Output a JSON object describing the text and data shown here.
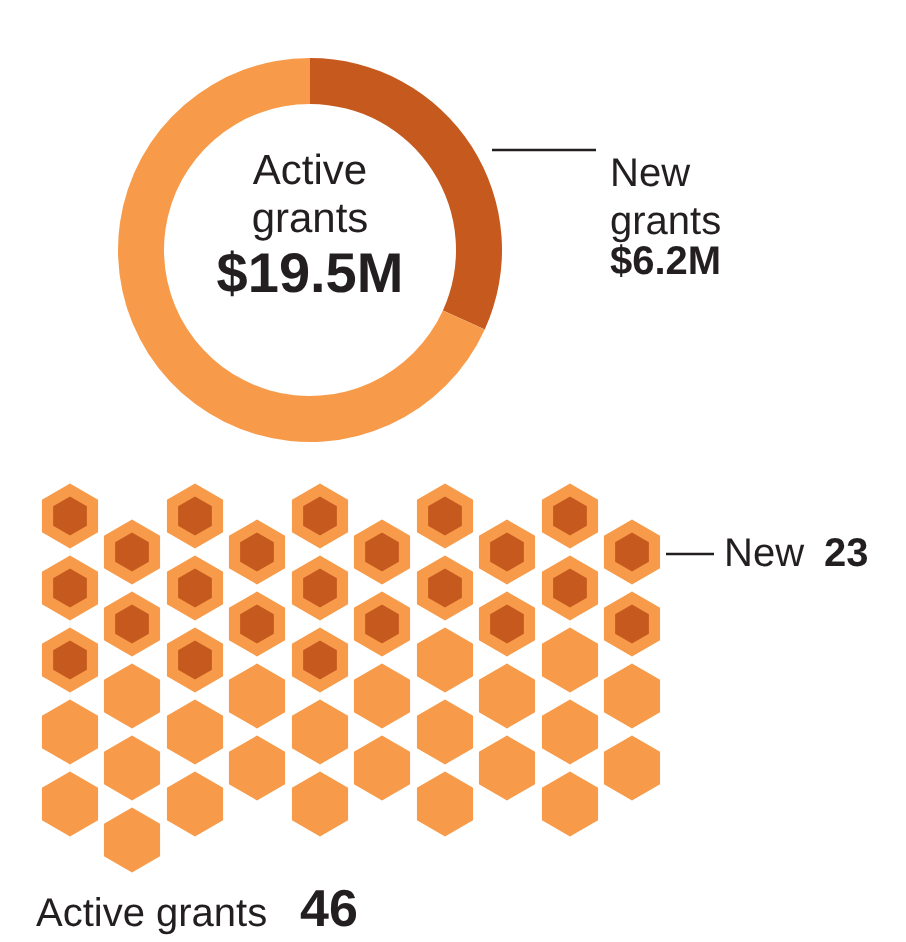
{
  "chart_data": [
    {
      "type": "donut",
      "categories": [
        "New grants",
        null
      ],
      "values": [
        6.2,
        13.3
      ],
      "colors": [
        "#c65a1e",
        "#f79b4a"
      ],
      "value_labels": [
        "$6.2M",
        null
      ],
      "annotations": [
        "Active grants",
        "$19.5M"
      ]
    },
    {
      "type": "other",
      "categories": [
        "New",
        "Active grants"
      ],
      "values": [
        23,
        46
      ],
      "colors": [
        "#c65a1e",
        "#f79b4a"
      ],
      "data_labels": true
    }
  ]
}
